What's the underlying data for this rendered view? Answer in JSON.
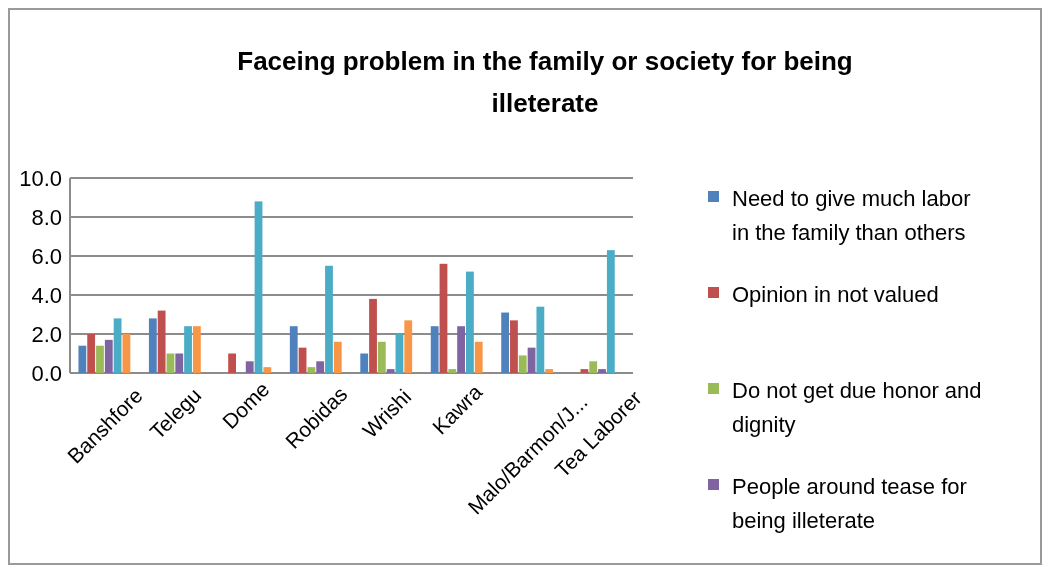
{
  "chart_data": {
    "type": "bar",
    "title": "Faceing problem in the family or society for being illeterate",
    "categories": [
      "Banshfore",
      "Telegu",
      "Dome",
      "Robidas",
      "Wrishi",
      "Kawra",
      "Malo/Barmon/J...",
      "Tea Laborer"
    ],
    "series": [
      {
        "name": "Need to give much labor in the family than others",
        "color": "#4f81bd",
        "values": [
          1.4,
          2.8,
          0,
          2.4,
          1.0,
          2.4,
          3.1,
          0
        ]
      },
      {
        "name": "Opinion in not valued",
        "color": "#c0504d",
        "values": [
          2.0,
          3.2,
          1.0,
          1.3,
          3.8,
          5.6,
          2.7,
          0.2
        ]
      },
      {
        "name": "Do not get due honor and dignity",
        "color": "#9bbb59",
        "values": [
          1.4,
          1.0,
          0,
          0.3,
          1.6,
          0.2,
          0.9,
          0.6
        ]
      },
      {
        "name": "People around tease for being illeterate",
        "color": "#8064a2",
        "values": [
          1.7,
          1.0,
          0.6,
          0.6,
          0.2,
          2.4,
          1.3,
          0.2
        ]
      },
      {
        "color": "#4bacc6",
        "values": [
          2.8,
          2.4,
          8.8,
          5.5,
          2.0,
          5.2,
          3.4,
          6.3
        ]
      },
      {
        "color": "#f79646",
        "values": [
          2.0,
          2.4,
          0.3,
          1.6,
          2.7,
          1.6,
          0.2,
          0
        ]
      }
    ],
    "ylim": [
      0,
      10
    ],
    "yticks": [
      {
        "value": 0,
        "label": "0.0"
      },
      {
        "value": 2,
        "label": "2.0"
      },
      {
        "value": 4,
        "label": "4.0"
      },
      {
        "value": 6,
        "label": "6.0"
      },
      {
        "value": 8,
        "label": "8.0"
      },
      {
        "value": 10,
        "label": "10.0"
      }
    ],
    "grid": "y",
    "legend": "right"
  }
}
